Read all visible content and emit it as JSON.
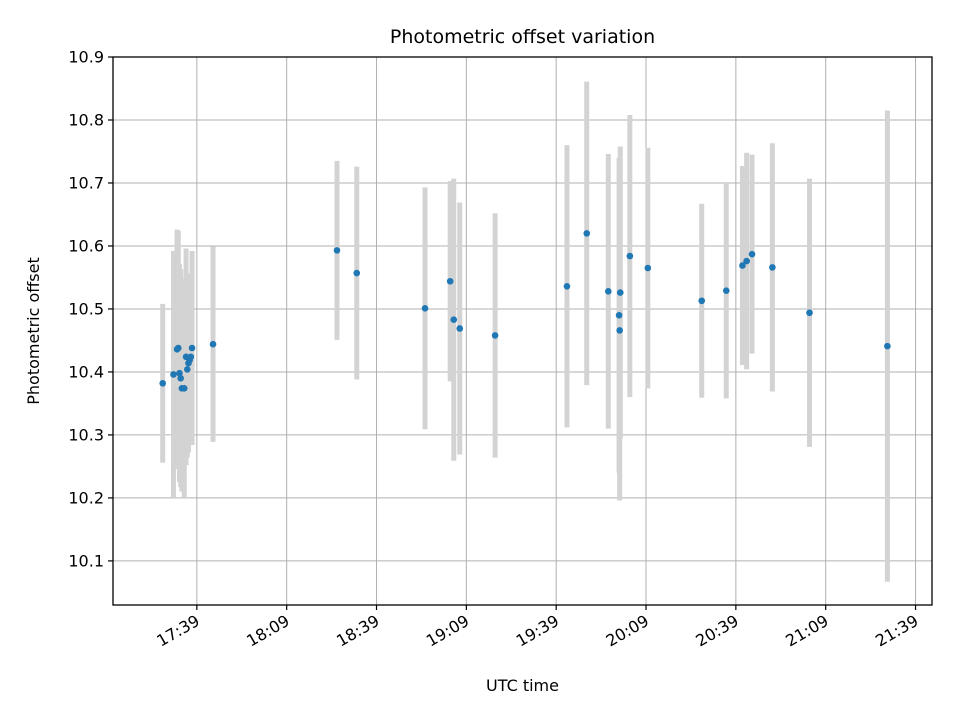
{
  "chart_data": {
    "type": "scatter",
    "title": "Photometric offset variation",
    "xlabel": "UTC time",
    "ylabel": "Photometric offset",
    "grid": true,
    "x_ticks": [
      "17:39",
      "18:09",
      "18:39",
      "19:09",
      "19:39",
      "20:09",
      "20:39",
      "21:09",
      "21:39"
    ],
    "x_tick_minutes": [
      1059,
      1089,
      1119,
      1149,
      1179,
      1209,
      1239,
      1269,
      1299
    ],
    "xlim_minutes": [
      1031.0,
      1304.5
    ],
    "ylim": [
      10.03,
      10.9
    ],
    "y_ticks": [
      "10.1",
      "10.2",
      "10.3",
      "10.4",
      "10.5",
      "10.6",
      "10.7",
      "10.8",
      "10.9"
    ],
    "marker_color": "#1f77b4",
    "errorbar_color": "#d3d3d3",
    "series": [
      {
        "x_time": [
          "17:27:36",
          "17:31:12",
          "17:32:24",
          "17:32:48",
          "17:33:12",
          "17:33:36",
          "17:34:00",
          "17:34:48",
          "17:35:24",
          "17:35:48",
          "17:36:12",
          "17:36:36",
          "17:37:00",
          "17:37:24",
          "17:44:24",
          "18:25:48",
          "18:32:24",
          "18:55:12",
          "19:03:36",
          "19:04:48",
          "19:06:48",
          "19:18:36",
          "19:42:36",
          "19:49:12",
          "19:56:24",
          "20:00:00",
          "20:00:12",
          "20:00:24",
          "20:03:36",
          "20:09:36",
          "20:27:36",
          "20:35:48",
          "20:41:12",
          "20:42:36",
          "20:44:24",
          "20:51:12",
          "21:03:36",
          "21:29:36"
        ],
        "y": [
          10.382,
          10.396,
          10.436,
          10.438,
          10.398,
          10.39,
          10.374,
          10.374,
          10.424,
          10.404,
          10.414,
          10.419,
          10.424,
          10.438,
          10.444,
          10.593,
          10.557,
          10.501,
          10.544,
          10.483,
          10.469,
          10.458,
          10.536,
          10.62,
          10.528,
          10.49,
          10.466,
          10.526,
          10.584,
          10.565,
          10.513,
          10.529,
          10.569,
          10.576,
          10.587,
          10.566,
          10.494,
          10.441
        ],
        "err": [
          0.126,
          0.196,
          0.19,
          0.186,
          0.173,
          0.173,
          0.164,
          0.174,
          0.172,
          0.14,
          0.142,
          0.123,
          0.132,
          0.154,
          0.155,
          0.142,
          0.169,
          0.192,
          0.159,
          0.224,
          0.2,
          0.194,
          0.224,
          0.241,
          0.218,
          0.25,
          0.27,
          0.232,
          0.224,
          0.191,
          0.154,
          0.171,
          0.158,
          0.172,
          0.158,
          0.197,
          0.213,
          0.374
        ]
      }
    ]
  }
}
